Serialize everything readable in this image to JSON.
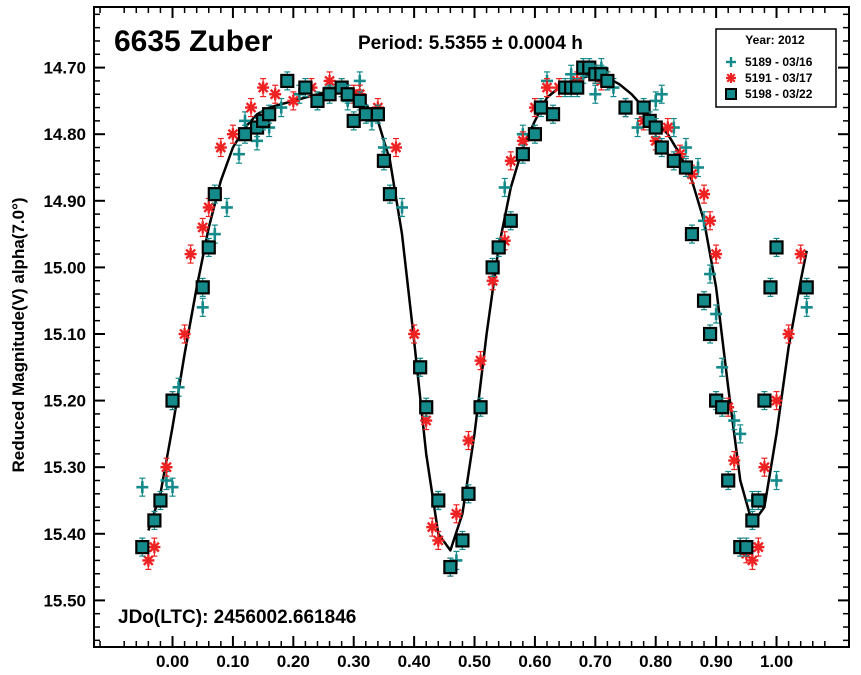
{
  "chart_data": {
    "type": "scatter",
    "title": "6635 Zuber",
    "subtitle": "Period: 5.5355 ± 0.0004 h",
    "annotation": "JDo(LTC): 2456002.661846",
    "xlabel": "",
    "ylabel": "Reduced Magnitude(V) alpha(7.0°)",
    "xlim": [
      -0.13,
      1.12
    ],
    "ylim": [
      15.57,
      14.609
    ],
    "y_inverted": true,
    "x_ticks": [
      "0.00",
      "0.10",
      "0.20",
      "0.30",
      "0.40",
      "0.50",
      "0.60",
      "0.70",
      "0.80",
      "0.90",
      "1.00"
    ],
    "y_ticks": [
      "14.70",
      "14.80",
      "14.90",
      "15.00",
      "15.10",
      "15.20",
      "15.30",
      "15.40",
      "15.50"
    ],
    "legend": {
      "title": "Year: 2012",
      "placement": "top-right",
      "entries": [
        "5189 - 03/16",
        "5191 - 03/17",
        "5198 - 03/22"
      ]
    },
    "colors": {
      "teal": "#148a8a",
      "red": "#ee2222",
      "curve": "#000000"
    },
    "series": [
      {
        "name": "5189 - 03/16",
        "marker": "plus",
        "color": "#148a8a",
        "x": [
          -0.05,
          -0.01,
          0.0,
          0.01,
          0.05,
          0.07,
          0.09,
          0.11,
          0.12,
          0.14,
          0.16,
          0.18,
          0.21,
          0.24,
          0.26,
          0.29,
          0.31,
          0.33,
          0.35,
          0.38,
          0.44,
          0.47,
          0.55,
          0.58,
          0.62,
          0.66,
          0.68,
          0.7,
          0.71,
          0.73,
          0.75,
          0.77,
          0.8,
          0.81,
          0.83,
          0.85,
          0.87,
          0.88,
          0.89,
          0.9,
          0.91,
          0.93,
          0.94,
          0.96,
          1.0,
          1.05
        ],
        "y": [
          15.33,
          15.32,
          15.33,
          15.18,
          15.06,
          14.95,
          14.91,
          14.83,
          14.78,
          14.81,
          14.79,
          14.76,
          14.74,
          14.75,
          14.73,
          14.75,
          14.72,
          14.78,
          14.82,
          14.91,
          15.35,
          15.44,
          14.88,
          14.8,
          14.72,
          14.71,
          14.71,
          14.74,
          14.7,
          14.73,
          14.76,
          14.79,
          14.75,
          14.74,
          14.79,
          14.82,
          14.85,
          14.93,
          15.01,
          15.07,
          15.15,
          15.23,
          15.25,
          15.35,
          15.32,
          15.06
        ]
      },
      {
        "name": "5191 - 03/17",
        "marker": "asterisk",
        "color": "#ee2222",
        "x": [
          -0.04,
          -0.03,
          -0.01,
          0.0,
          0.02,
          0.03,
          0.05,
          0.06,
          0.08,
          0.1,
          0.13,
          0.15,
          0.17,
          0.2,
          0.23,
          0.26,
          0.28,
          0.3,
          0.31,
          0.34,
          0.37,
          0.4,
          0.42,
          0.43,
          0.44,
          0.46,
          0.47,
          0.49,
          0.51,
          0.53,
          0.55,
          0.56,
          0.58,
          0.6,
          0.62,
          0.64,
          0.67,
          0.7,
          0.71,
          0.72,
          0.75,
          0.78,
          0.8,
          0.82,
          0.84,
          0.86,
          0.88,
          0.89,
          0.9,
          0.92,
          0.93,
          0.94,
          0.95,
          0.96,
          0.97,
          0.98,
          1.0,
          1.02,
          1.04
        ],
        "y": [
          15.44,
          15.42,
          15.3,
          15.2,
          15.1,
          14.98,
          14.94,
          14.91,
          14.82,
          14.8,
          14.76,
          14.73,
          14.74,
          14.75,
          14.73,
          14.72,
          14.73,
          14.74,
          14.74,
          14.76,
          14.82,
          15.1,
          15.23,
          15.39,
          15.41,
          15.45,
          15.37,
          15.26,
          15.14,
          15.02,
          14.96,
          14.84,
          14.81,
          14.76,
          14.73,
          14.73,
          14.72,
          14.71,
          14.72,
          14.72,
          14.76,
          14.78,
          14.81,
          14.79,
          14.83,
          14.86,
          14.89,
          14.93,
          14.98,
          15.21,
          15.29,
          15.42,
          15.43,
          15.44,
          15.42,
          15.3,
          15.2,
          15.1,
          14.98
        ]
      },
      {
        "name": "5198 - 03/22",
        "marker": "filled-square",
        "color": "#148a8a",
        "x": [
          -0.05,
          -0.03,
          -0.02,
          0.0,
          0.05,
          0.06,
          0.07,
          0.12,
          0.14,
          0.15,
          0.16,
          0.19,
          0.22,
          0.24,
          0.26,
          0.28,
          0.29,
          0.3,
          0.31,
          0.32,
          0.34,
          0.35,
          0.36,
          0.41,
          0.42,
          0.44,
          0.46,
          0.48,
          0.49,
          0.51,
          0.53,
          0.54,
          0.56,
          0.58,
          0.6,
          0.61,
          0.63,
          0.65,
          0.66,
          0.67,
          0.68,
          0.69,
          0.7,
          0.71,
          0.72,
          0.75,
          0.78,
          0.79,
          0.8,
          0.81,
          0.83,
          0.85,
          0.86,
          0.88,
          0.89,
          0.9,
          0.91,
          0.92,
          0.94,
          0.95,
          0.96,
          0.97,
          0.98,
          0.99,
          1.0,
          1.05
        ],
        "y": [
          15.42,
          15.38,
          15.35,
          15.2,
          15.03,
          14.97,
          14.89,
          14.8,
          14.79,
          14.78,
          14.77,
          14.72,
          14.73,
          14.75,
          14.74,
          14.73,
          14.74,
          14.78,
          14.75,
          14.77,
          14.77,
          14.84,
          14.89,
          15.15,
          15.21,
          15.35,
          15.45,
          15.41,
          15.34,
          15.21,
          15.0,
          14.97,
          14.93,
          14.83,
          14.8,
          14.76,
          14.77,
          14.73,
          14.73,
          14.73,
          14.7,
          14.7,
          14.71,
          14.71,
          14.72,
          14.76,
          14.76,
          14.78,
          14.79,
          14.82,
          14.84,
          14.85,
          14.95,
          15.05,
          15.1,
          15.2,
          15.21,
          15.32,
          15.42,
          15.42,
          15.38,
          15.35,
          15.2,
          15.03,
          14.97,
          15.03
        ]
      }
    ],
    "fit_curve": {
      "name": "fourier fit",
      "x": [
        -0.04,
        -0.02,
        0.0,
        0.02,
        0.04,
        0.06,
        0.08,
        0.1,
        0.12,
        0.14,
        0.16,
        0.18,
        0.2,
        0.22,
        0.24,
        0.26,
        0.28,
        0.3,
        0.32,
        0.34,
        0.36,
        0.38,
        0.4,
        0.42,
        0.44,
        0.46,
        0.48,
        0.5,
        0.52,
        0.54,
        0.56,
        0.58,
        0.6,
        0.62,
        0.64,
        0.66,
        0.68,
        0.7,
        0.72,
        0.74,
        0.76,
        0.78,
        0.8,
        0.82,
        0.84,
        0.86,
        0.88,
        0.9,
        0.92,
        0.94,
        0.96,
        0.98,
        1.0,
        1.02,
        1.04,
        1.05
      ],
      "y": [
        15.395,
        15.34,
        15.24,
        15.13,
        15.03,
        14.94,
        14.87,
        14.82,
        14.79,
        14.77,
        14.76,
        14.755,
        14.75,
        14.745,
        14.74,
        14.735,
        14.735,
        14.74,
        14.755,
        14.78,
        14.84,
        14.95,
        15.11,
        15.28,
        15.4,
        15.425,
        15.37,
        15.25,
        15.1,
        14.97,
        14.88,
        14.82,
        14.78,
        14.745,
        14.73,
        14.72,
        14.715,
        14.71,
        14.715,
        14.725,
        14.74,
        14.76,
        14.78,
        14.8,
        14.83,
        14.87,
        14.93,
        15.03,
        15.18,
        15.32,
        15.385,
        15.36,
        15.25,
        15.12,
        15.02,
        14.975
      ]
    }
  }
}
